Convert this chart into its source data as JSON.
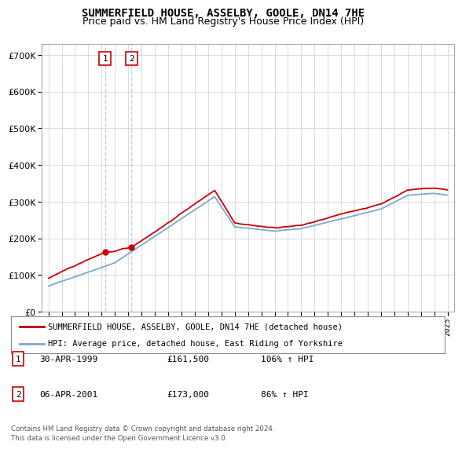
{
  "title": "SUMMERFIELD HOUSE, ASSELBY, GOOLE, DN14 7HE",
  "subtitle": "Price paid vs. HM Land Registry's House Price Index (HPI)",
  "title_fontsize": 10,
  "subtitle_fontsize": 9,
  "background_color": "#ffffff",
  "grid_color": "#cccccc",
  "sale1_yr": 1999.25,
  "sale2_yr": 2001.25,
  "sale1_price": 161500,
  "sale2_price": 173000,
  "legend_line1": "SUMMERFIELD HOUSE, ASSELBY, GOOLE, DN14 7HE (detached house)",
  "legend_line2": "HPI: Average price, detached house, East Riding of Yorkshire",
  "footer": "Contains HM Land Registry data © Crown copyright and database right 2024.\nThis data is licensed under the Open Government Licence v3.0.",
  "red_color": "#cc0000",
  "blue_color": "#7aaacf",
  "vline_color": "#aaccee",
  "ylim_max": 730000,
  "xlim_min": 1994.5,
  "xlim_max": 2025.5
}
